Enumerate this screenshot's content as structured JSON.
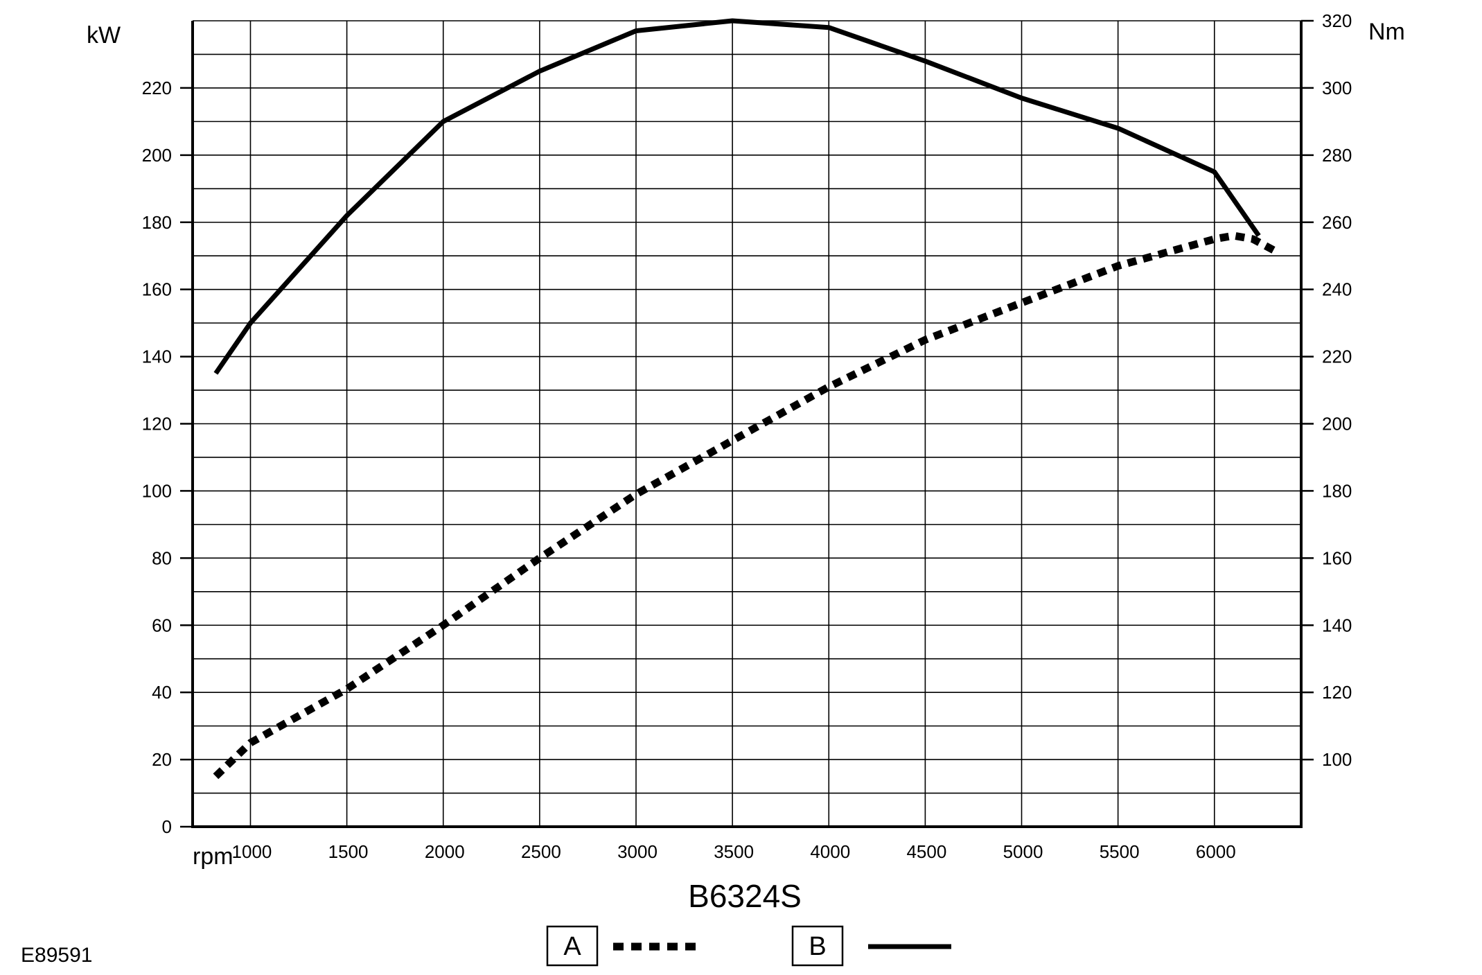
{
  "chart_data": {
    "type": "line",
    "title": "B6324S",
    "figure_id": "E89591",
    "x_unit_label": "rpm",
    "left_unit_label": "kW",
    "right_unit_label": "Nm",
    "xlim": [
      700,
      6450
    ],
    "ylim_left": [
      0,
      240
    ],
    "ylim_right": [
      80,
      320
    ],
    "x_ticks": [
      1000,
      1500,
      2000,
      2500,
      3000,
      3500,
      4000,
      4500,
      5000,
      5500,
      6000
    ],
    "y_left_ticks": [
      0,
      20,
      40,
      60,
      80,
      100,
      120,
      140,
      160,
      180,
      200,
      220
    ],
    "y_right_ticks": [
      100,
      120,
      140,
      160,
      180,
      200,
      220,
      240,
      260,
      280,
      300,
      320
    ],
    "grid": true,
    "legend_position": "bottom-center",
    "series": [
      {
        "name": "A",
        "axis": "left",
        "style": "dotted",
        "color": "#000000",
        "x": [
          820,
          1000,
          1500,
          2000,
          2500,
          3000,
          3500,
          4000,
          4500,
          5000,
          5500,
          6000,
          6100,
          6200,
          6330
        ],
        "y": [
          15,
          25,
          41,
          60,
          80,
          99,
          115,
          131,
          145,
          156,
          167,
          175,
          176,
          175,
          171
        ]
      },
      {
        "name": "B",
        "axis": "right",
        "style": "solid",
        "color": "#000000",
        "x": [
          820,
          1000,
          1500,
          2000,
          2500,
          3000,
          3500,
          4000,
          4500,
          5000,
          5500,
          6000,
          6230
        ],
        "y": [
          215,
          230,
          262,
          290,
          305,
          317,
          320,
          318,
          308,
          297,
          288,
          275,
          256
        ]
      }
    ]
  }
}
